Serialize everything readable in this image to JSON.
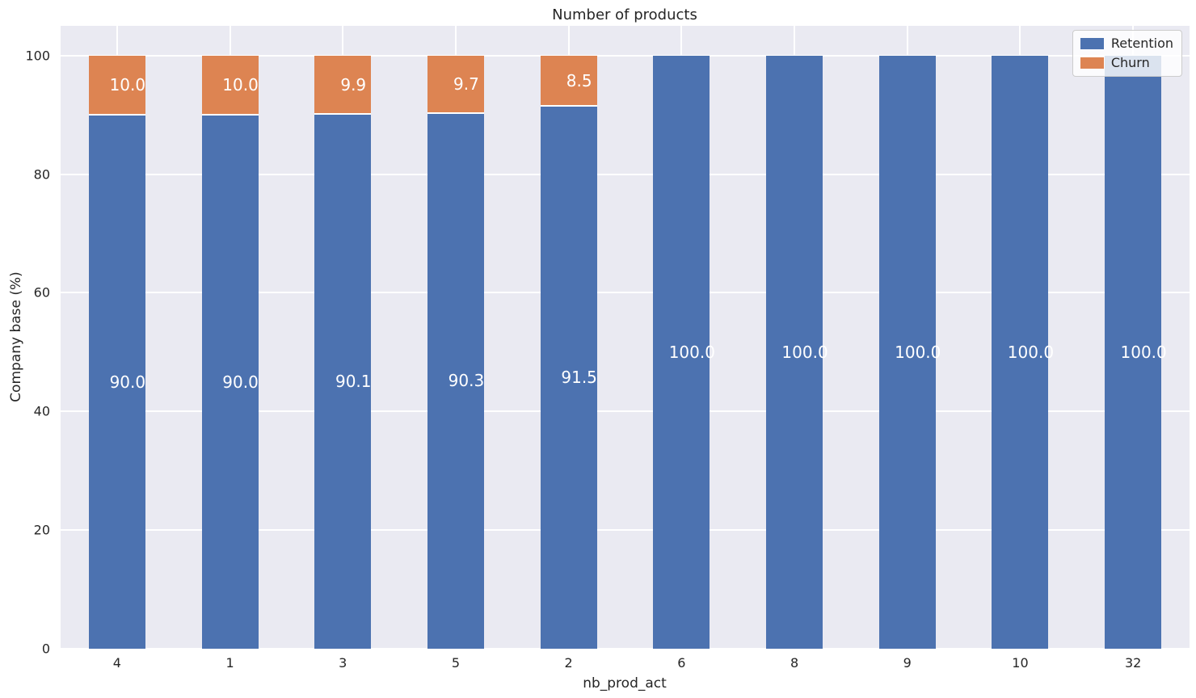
{
  "title": "Number of products",
  "chart_data": {
    "type": "bar",
    "stacked": true,
    "title": "Number of products",
    "xlabel": "nb_prod_act",
    "ylabel": "Company base (%)",
    "ylim": [
      0,
      105
    ],
    "yticks": [
      0,
      20,
      40,
      60,
      80,
      100
    ],
    "categories": [
      "4",
      "1",
      "3",
      "5",
      "2",
      "6",
      "8",
      "9",
      "10",
      "32"
    ],
    "series": [
      {
        "name": "Retention",
        "color": "#4C72B0",
        "values": [
          90.0,
          90.0,
          90.1,
          90.3,
          91.5,
          100.0,
          100.0,
          100.0,
          100.0,
          100.0
        ]
      },
      {
        "name": "Churn",
        "color": "#DD8452",
        "values": [
          10.0,
          10.0,
          9.9,
          9.7,
          8.5,
          0,
          0,
          0,
          0,
          0
        ]
      }
    ],
    "bar_labels_shown": true,
    "bar_label_decimals": 1,
    "legend_position": "upper right",
    "grid": true
  },
  "legend": {
    "items": [
      {
        "label": "Retention",
        "color": "#4C72B0"
      },
      {
        "label": "Churn",
        "color": "#DD8452"
      }
    ]
  },
  "colors": {
    "plot_bg": "#EAEAF2",
    "grid": "#FFFFFF",
    "text": "#262626",
    "bar_label_text": "#FFFFFF",
    "legend_border": "#CCCCCC"
  }
}
